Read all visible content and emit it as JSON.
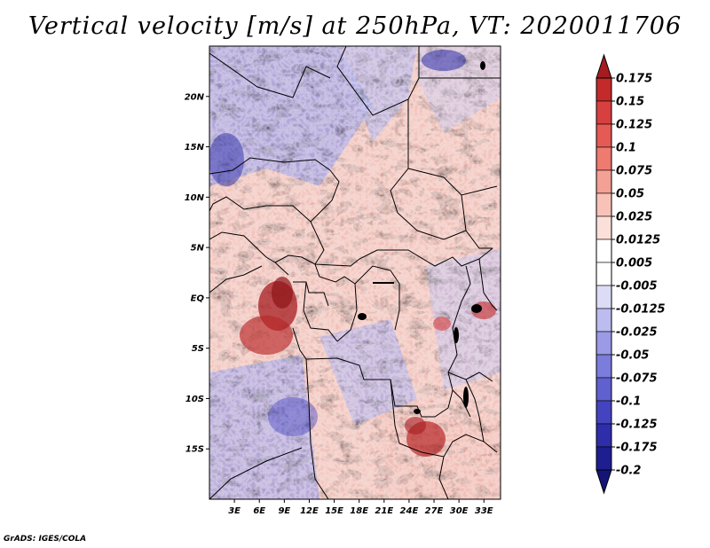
{
  "title": "Vertical velocity [m/s] at 250hPa, VT: 2020011706",
  "credit": "GrADS: IGES/COLA",
  "map": {
    "lat_labels": [
      "20N",
      "15N",
      "10N",
      "5N",
      "EQ",
      "5S",
      "10S",
      "15S"
    ],
    "lon_labels": [
      "3E",
      "6E",
      "9E",
      "12E",
      "15E",
      "18E",
      "21E",
      "24E",
      "27E",
      "30E",
      "33E"
    ],
    "lat_range": [
      -20,
      25
    ],
    "lon_range": [
      0,
      35
    ],
    "lat_ticks": [
      20,
      15,
      10,
      5,
      0,
      -5,
      -10,
      -15
    ],
    "lon_ticks": [
      3,
      6,
      9,
      12,
      15,
      18,
      21,
      24,
      27,
      30,
      33
    ]
  },
  "colorbar": {
    "labels": [
      "0.175",
      "0.15",
      "0.125",
      "0.1",
      "0.075",
      "0.05",
      "0.025",
      "0.0125",
      "0.005",
      "-0.005",
      "-0.0125",
      "-0.025",
      "-0.05",
      "-0.075",
      "-0.1",
      "-0.125",
      "-0.175",
      "-0.2"
    ],
    "colors": [
      "#a51c20",
      "#c42a2a",
      "#d84040",
      "#e55a55",
      "#ee7a70",
      "#f4a095",
      "#f8c2b8",
      "#fbe0da",
      "#ffffff",
      "#ffffff",
      "#dcdcf6",
      "#bcbcf0",
      "#9a9ae6",
      "#7c7cdc",
      "#6060d0",
      "#4444c0",
      "#2e2eaa",
      "#1e1e90",
      "#141478"
    ]
  }
}
